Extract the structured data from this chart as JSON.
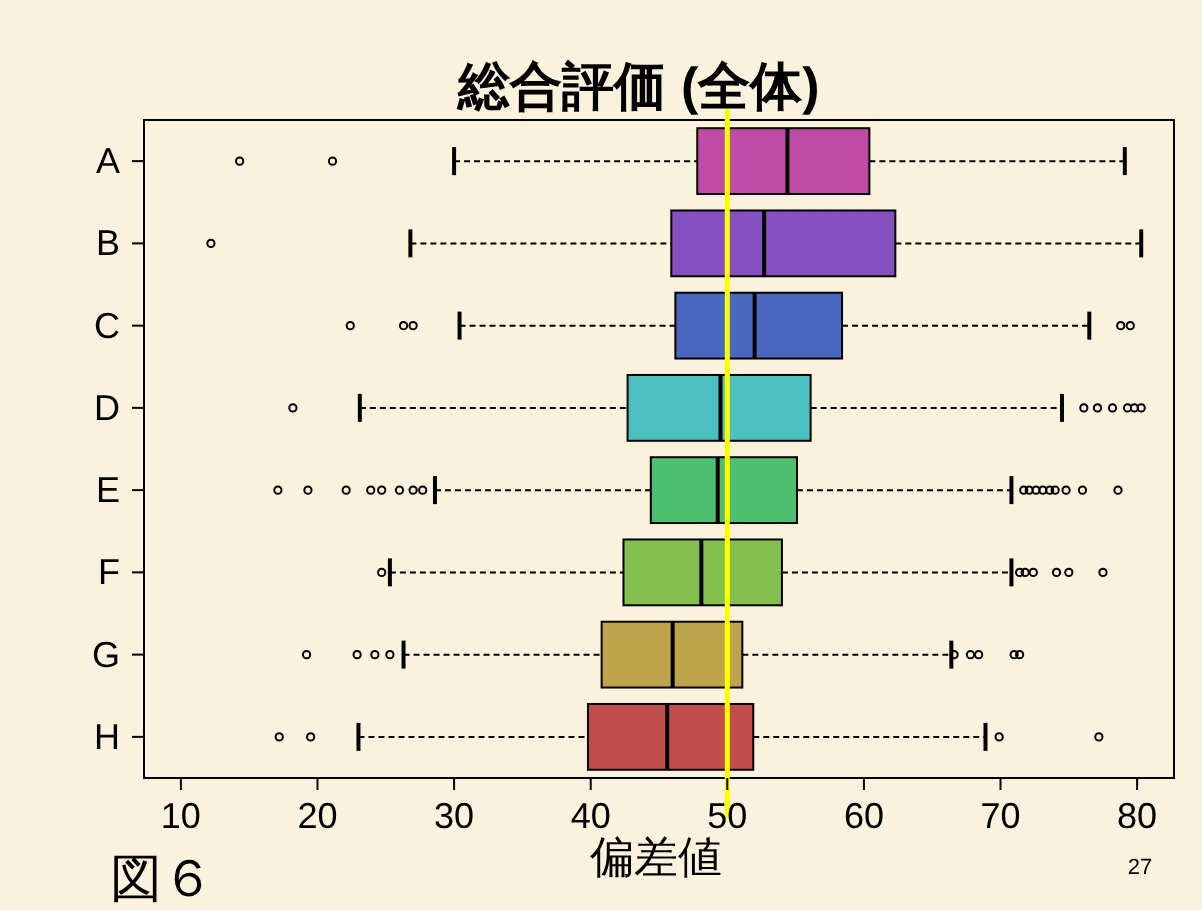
{
  "chart_data": {
    "type": "box",
    "title": "総合評価 (全体)",
    "xlabel": "偏差値",
    "orientation": "horizontal",
    "categories": [
      "A",
      "B",
      "C",
      "D",
      "E",
      "F",
      "G",
      "H"
    ],
    "colors": [
      "#c04ca8",
      "#8450c0",
      "#4a68c0",
      "#4cc0c0",
      "#4cc070",
      "#84c050",
      "#c0a44c",
      "#c04c4c"
    ],
    "boxes": [
      {
        "low": 30,
        "q1": 47.8,
        "median": 54.4,
        "q3": 60.4,
        "high": 79.1,
        "outliers": [
          14.3,
          21.1
        ]
      },
      {
        "low": 26.8,
        "q1": 45.9,
        "median": 52.7,
        "q3": 62.3,
        "high": 80.3,
        "outliers": [
          12.2
        ]
      },
      {
        "low": 30.4,
        "q1": 46.2,
        "median": 52,
        "q3": 58.4,
        "high": 76.5,
        "outliers": [
          22.4,
          26.3,
          27,
          78.8,
          79.5
        ]
      },
      {
        "low": 23.1,
        "q1": 42.7,
        "median": 49.5,
        "q3": 56.1,
        "high": 74.5,
        "outliers": [
          18.2,
          76.1,
          77.1,
          78.2,
          79.3,
          79.8,
          80.3
        ]
      },
      {
        "low": 28.6,
        "q1": 44.4,
        "median": 49.3,
        "q3": 55.1,
        "high": 70.8,
        "outliers": [
          17.1,
          19.3,
          22.1,
          23.9,
          24.7,
          26,
          27,
          27.7,
          71.7,
          72.1,
          72.6,
          73.1,
          73.6,
          74,
          74.8,
          76,
          78.6
        ]
      },
      {
        "low": 25.3,
        "q1": 42.4,
        "median": 48.1,
        "q3": 54,
        "high": 70.8,
        "outliers": [
          24.7,
          71.4,
          71.8,
          72.4,
          74.1,
          75,
          77.5
        ]
      },
      {
        "low": 26.3,
        "q1": 40.8,
        "median": 46,
        "q3": 51.1,
        "high": 66.4,
        "outliers": [
          19.2,
          22.9,
          24.2,
          25.3,
          66.6,
          67.8,
          68.4,
          71,
          71.4
        ]
      },
      {
        "low": 23,
        "q1": 39.8,
        "median": 45.6,
        "q3": 51.9,
        "high": 68.9,
        "outliers": [
          17.2,
          19.5,
          69.9,
          77.2
        ]
      }
    ],
    "xlim": [
      7.3,
      82.7
    ],
    "xticks": [
      10,
      20,
      30,
      40,
      50,
      60,
      70,
      80
    ],
    "ref_lines": [
      {
        "axis": "x",
        "value": 50,
        "color": "#ffff00"
      }
    ],
    "grid": false,
    "annotations": [
      "図６",
      "27"
    ]
  }
}
